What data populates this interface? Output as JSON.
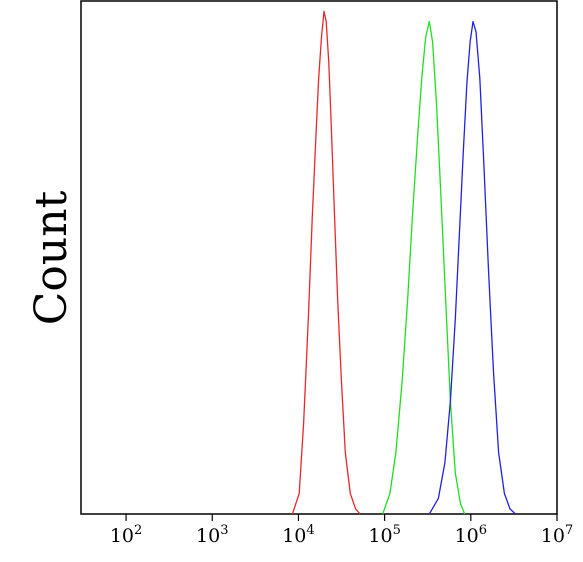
{
  "chart_data": {
    "type": "line",
    "title": "",
    "xlabel": "",
    "ylabel": "Count",
    "x_scale": "log",
    "xlim": [
      30,
      10000000
    ],
    "ylim": [
      0,
      1.0
    ],
    "grid": false,
    "x_ticks": [
      {
        "base": "10",
        "exp": "2",
        "value": 100
      },
      {
        "base": "10",
        "exp": "3",
        "value": 1000
      },
      {
        "base": "10",
        "exp": "4",
        "value": 10000
      },
      {
        "base": "10",
        "exp": "5",
        "value": 100000
      },
      {
        "base": "10",
        "exp": "6",
        "value": 1000000
      },
      {
        "base": "10",
        "exp": "7",
        "value": 10000000
      }
    ],
    "series": [
      {
        "color": "#e8282a",
        "x": [
          8500,
          10200,
          11500,
          13000,
          14500,
          16000,
          17200,
          18500,
          19800,
          21000,
          22500,
          24000,
          26000,
          28500,
          31500,
          35000,
          40000,
          46000,
          52000
        ],
        "y": [
          0.0,
          0.04,
          0.18,
          0.38,
          0.58,
          0.74,
          0.85,
          0.93,
          0.98,
          0.96,
          0.88,
          0.76,
          0.6,
          0.42,
          0.26,
          0.12,
          0.04,
          0.01,
          0.0
        ]
      },
      {
        "color": "#22dd22",
        "x": [
          95000,
          115000,
          135000,
          160000,
          185000,
          210000,
          240000,
          270000,
          300000,
          330000,
          360000,
          400000,
          450000,
          510000,
          580000,
          660000,
          760000,
          850000
        ],
        "y": [
          0.0,
          0.04,
          0.12,
          0.26,
          0.42,
          0.58,
          0.73,
          0.85,
          0.93,
          0.96,
          0.92,
          0.8,
          0.62,
          0.42,
          0.22,
          0.08,
          0.02,
          0.0
        ]
      },
      {
        "color": "#2222dd",
        "x": [
          330000,
          420000,
          500000,
          580000,
          660000,
          740000,
          820000,
          900000,
          980000,
          1060000,
          1150000,
          1270000,
          1420000,
          1600000,
          1830000,
          2100000,
          2450000,
          2850000,
          3300000
        ],
        "y": [
          0.0,
          0.03,
          0.1,
          0.22,
          0.38,
          0.55,
          0.71,
          0.84,
          0.92,
          0.96,
          0.94,
          0.85,
          0.68,
          0.48,
          0.28,
          0.12,
          0.04,
          0.01,
          0.0
        ]
      }
    ]
  }
}
